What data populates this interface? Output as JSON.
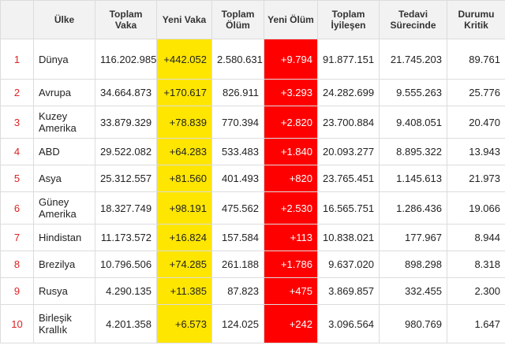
{
  "headers": [
    "",
    "Ülke",
    "Toplam Vaka",
    "Yeni Vaka",
    "Toplam Ölüm",
    "Yeni Ölüm",
    "Toplam İyileşen",
    "Tedavi Sürecinde",
    "Durumu Kritik"
  ],
  "rows": [
    {
      "rank": "1",
      "country": "Dünya",
      "total_cases": "116.202.985",
      "new_cases": "+442.052",
      "total_deaths": "2.580.631",
      "new_deaths": "+9.794",
      "recovered": "91.877.151",
      "active": "21.745.203",
      "critical": "89.761"
    },
    {
      "rank": "2",
      "country": "Avrupa",
      "total_cases": "34.664.873",
      "new_cases": "+170.617",
      "total_deaths": "826.911",
      "new_deaths": "+3.293",
      "recovered": "24.282.699",
      "active": "9.555.263",
      "critical": "25.776"
    },
    {
      "rank": "3",
      "country": "Kuzey Amerika",
      "total_cases": "33.879.329",
      "new_cases": "+78.839",
      "total_deaths": "770.394",
      "new_deaths": "+2.820",
      "recovered": "23.700.884",
      "active": "9.408.051",
      "critical": "20.470"
    },
    {
      "rank": "4",
      "country": "ABD",
      "total_cases": "29.522.082",
      "new_cases": "+64.283",
      "total_deaths": "533.483",
      "new_deaths": "+1.840",
      "recovered": "20.093.277",
      "active": "8.895.322",
      "critical": "13.943"
    },
    {
      "rank": "5",
      "country": "Asya",
      "total_cases": "25.312.557",
      "new_cases": "+81.560",
      "total_deaths": "401.493",
      "new_deaths": "+820",
      "recovered": "23.765.451",
      "active": "1.145.613",
      "critical": "21.973"
    },
    {
      "rank": "6",
      "country": "Güney Amerika",
      "total_cases": "18.327.749",
      "new_cases": "+98.191",
      "total_deaths": "475.562",
      "new_deaths": "+2.530",
      "recovered": "16.565.751",
      "active": "1.286.436",
      "critical": "19.066"
    },
    {
      "rank": "7",
      "country": "Hindistan",
      "total_cases": "11.173.572",
      "new_cases": "+16.824",
      "total_deaths": "157.584",
      "new_deaths": "+113",
      "recovered": "10.838.021",
      "active": "177.967",
      "critical": "8.944"
    },
    {
      "rank": "8",
      "country": "Brezilya",
      "total_cases": "10.796.506",
      "new_cases": "+74.285",
      "total_deaths": "261.188",
      "new_deaths": "+1.786",
      "recovered": "9.637.020",
      "active": "898.298",
      "critical": "8.318"
    },
    {
      "rank": "9",
      "country": "Rusya",
      "total_cases": "4.290.135",
      "new_cases": "+11.385",
      "total_deaths": "87.823",
      "new_deaths": "+475",
      "recovered": "3.869.857",
      "active": "332.455",
      "critical": "2.300"
    },
    {
      "rank": "10",
      "country": "Birleşik Krallık",
      "total_cases": "4.201.358",
      "new_cases": "+6.573",
      "total_deaths": "124.025",
      "new_deaths": "+242",
      "recovered": "3.096.564",
      "active": "980.769",
      "critical": "1.647"
    }
  ],
  "colors": {
    "new_cases_bg": "#ffe600",
    "new_deaths_bg": "#ff0000",
    "rank_text": "#dd2222",
    "header_bg": "#f2f2f2"
  }
}
